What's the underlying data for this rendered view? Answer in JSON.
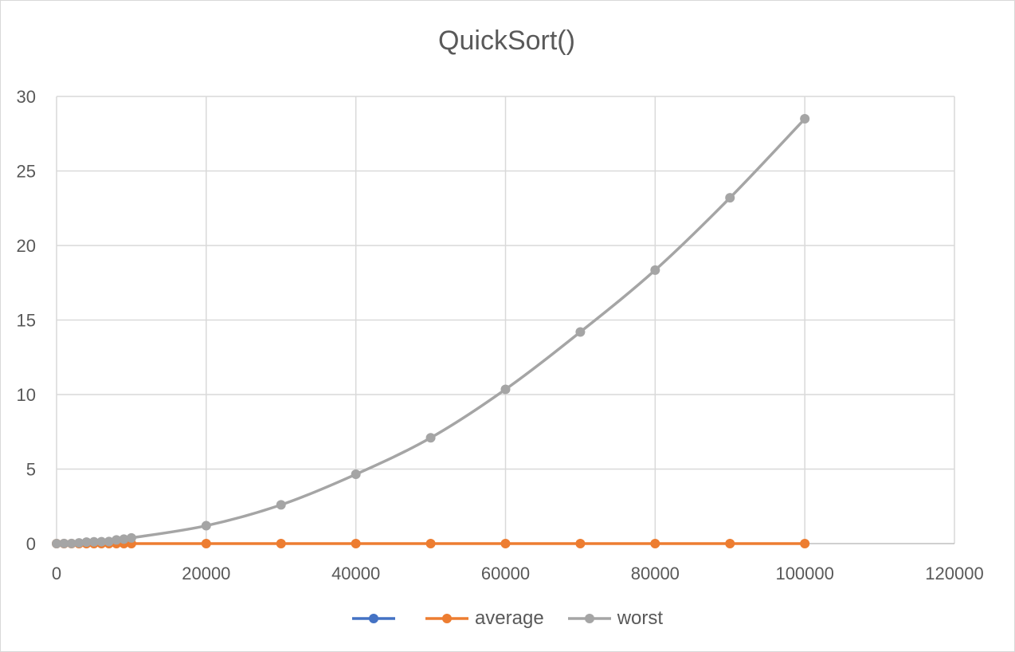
{
  "chart_data": {
    "type": "line",
    "title": "QuickSort()",
    "xlabel": "",
    "ylabel": "",
    "xlim": [
      0,
      120000
    ],
    "ylim": [
      0,
      30
    ],
    "x_ticks": [
      0,
      20000,
      40000,
      60000,
      80000,
      100000,
      120000
    ],
    "y_ticks": [
      0,
      5,
      10,
      15,
      20,
      25,
      30
    ],
    "grid": true,
    "legend_position": "bottom",
    "series": [
      {
        "name": "",
        "color": "#4472c4",
        "points": []
      },
      {
        "name": "average",
        "color": "#ed7d31",
        "points": [
          [
            0,
            0
          ],
          [
            1000,
            0
          ],
          [
            2000,
            0
          ],
          [
            3000,
            0
          ],
          [
            4000,
            0
          ],
          [
            5000,
            0
          ],
          [
            6000,
            0
          ],
          [
            7000,
            0
          ],
          [
            8000,
            0
          ],
          [
            9000,
            0
          ],
          [
            10000,
            0
          ],
          [
            20000,
            0
          ],
          [
            30000,
            0
          ],
          [
            40000,
            0
          ],
          [
            50000,
            0
          ],
          [
            60000,
            0
          ],
          [
            70000,
            0
          ],
          [
            80000,
            0
          ],
          [
            90000,
            0
          ],
          [
            100000,
            0
          ]
        ]
      },
      {
        "name": "worst",
        "color": "#a5a5a5",
        "points": [
          [
            0,
            0
          ],
          [
            1000,
            0.01
          ],
          [
            2000,
            0.01
          ],
          [
            3000,
            0.05
          ],
          [
            4000,
            0.1
          ],
          [
            5000,
            0.12
          ],
          [
            6000,
            0.13
          ],
          [
            7000,
            0.14
          ],
          [
            8000,
            0.25
          ],
          [
            9000,
            0.3
          ],
          [
            10000,
            0.38
          ],
          [
            20000,
            1.2
          ],
          [
            30000,
            2.6
          ],
          [
            40000,
            4.65
          ],
          [
            50000,
            7.1
          ],
          [
            60000,
            10.35
          ],
          [
            70000,
            14.2
          ],
          [
            80000,
            18.35
          ],
          [
            90000,
            23.2
          ],
          [
            100000,
            28.5
          ]
        ]
      }
    ]
  }
}
